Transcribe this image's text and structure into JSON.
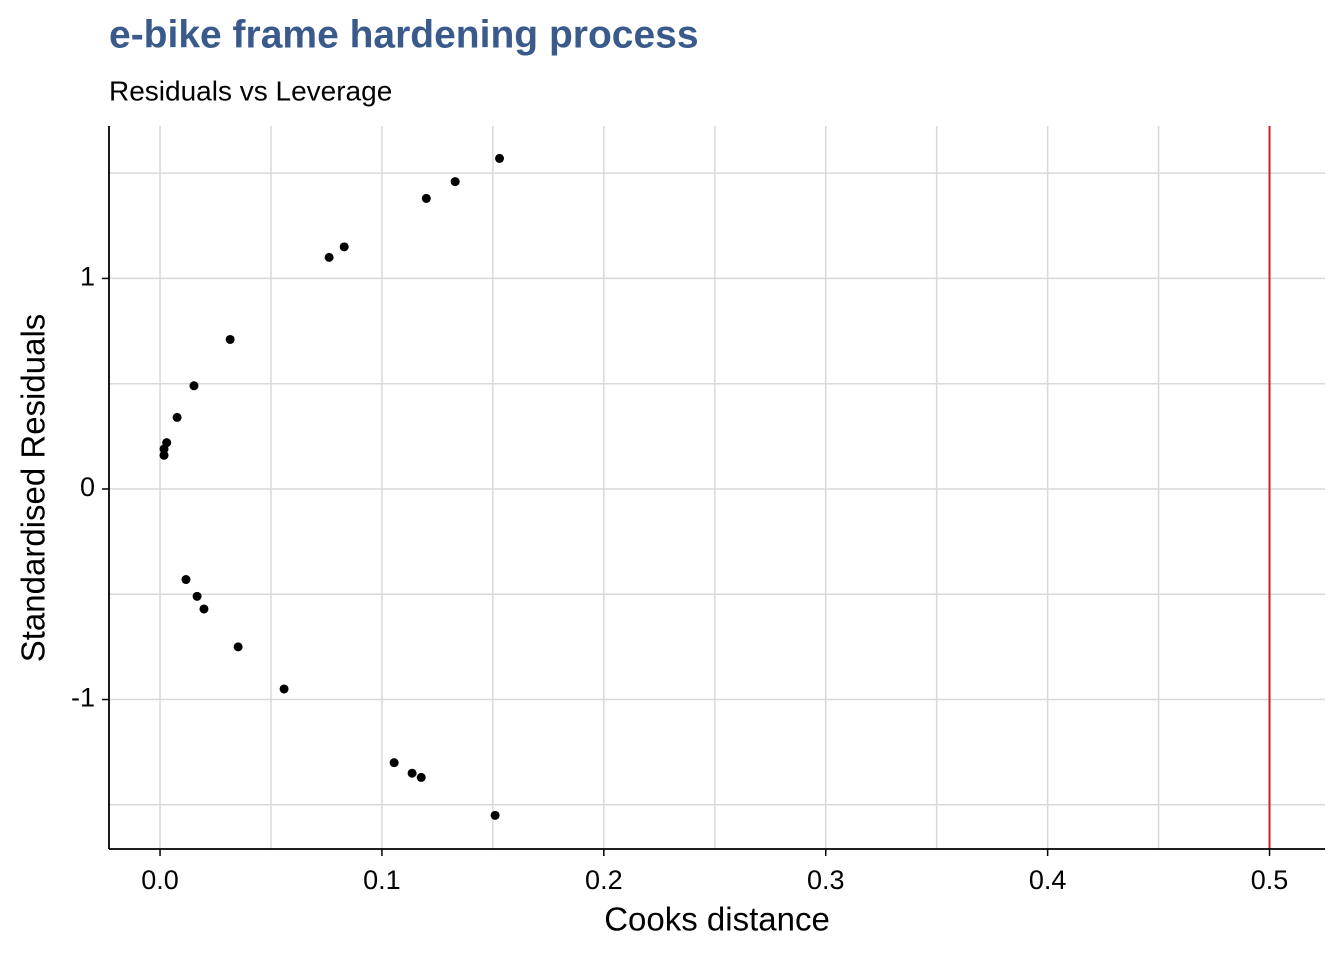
{
  "chart_data": {
    "type": "scatter",
    "title": "e-bike frame hardening process",
    "subtitle": "Residuals vs Leverage",
    "x_label": "Cooks distance",
    "y_label": "Standardised Residuals",
    "x": [
      0.0018,
      0.0018,
      0.003,
      0.0077,
      0.0153,
      0.0316,
      0.0762,
      0.083,
      0.12,
      0.133,
      0.153,
      0.0117,
      0.0167,
      0.0198,
      0.0352,
      0.0559,
      0.1055,
      0.1136,
      0.1177,
      0.151
    ],
    "values": [
      0.16,
      0.19,
      0.22,
      0.34,
      0.49,
      0.71,
      1.1,
      1.15,
      1.38,
      1.46,
      1.57,
      -0.43,
      -0.51,
      -0.57,
      -0.75,
      -0.95,
      -1.3,
      -1.35,
      -1.37,
      -1.55
    ],
    "color": "#000000",
    "xlim": [
      -0.023,
      0.525
    ],
    "ylim": [
      -1.71,
      1.724
    ],
    "xticks": [
      {
        "value": 0,
        "label": "0.0"
      },
      0.1,
      0.2,
      0.3,
      0.4,
      0.5
    ],
    "yticks": [
      -1,
      0,
      1
    ],
    "x_minor_grid": [
      0.05,
      0.15,
      0.25,
      0.35,
      0.45
    ],
    "y_minor_grid": [
      -1.5,
      -0.5,
      0.5,
      1.5
    ],
    "grid": true,
    "vline": 0.5,
    "vline_color": "#cc2222"
  }
}
